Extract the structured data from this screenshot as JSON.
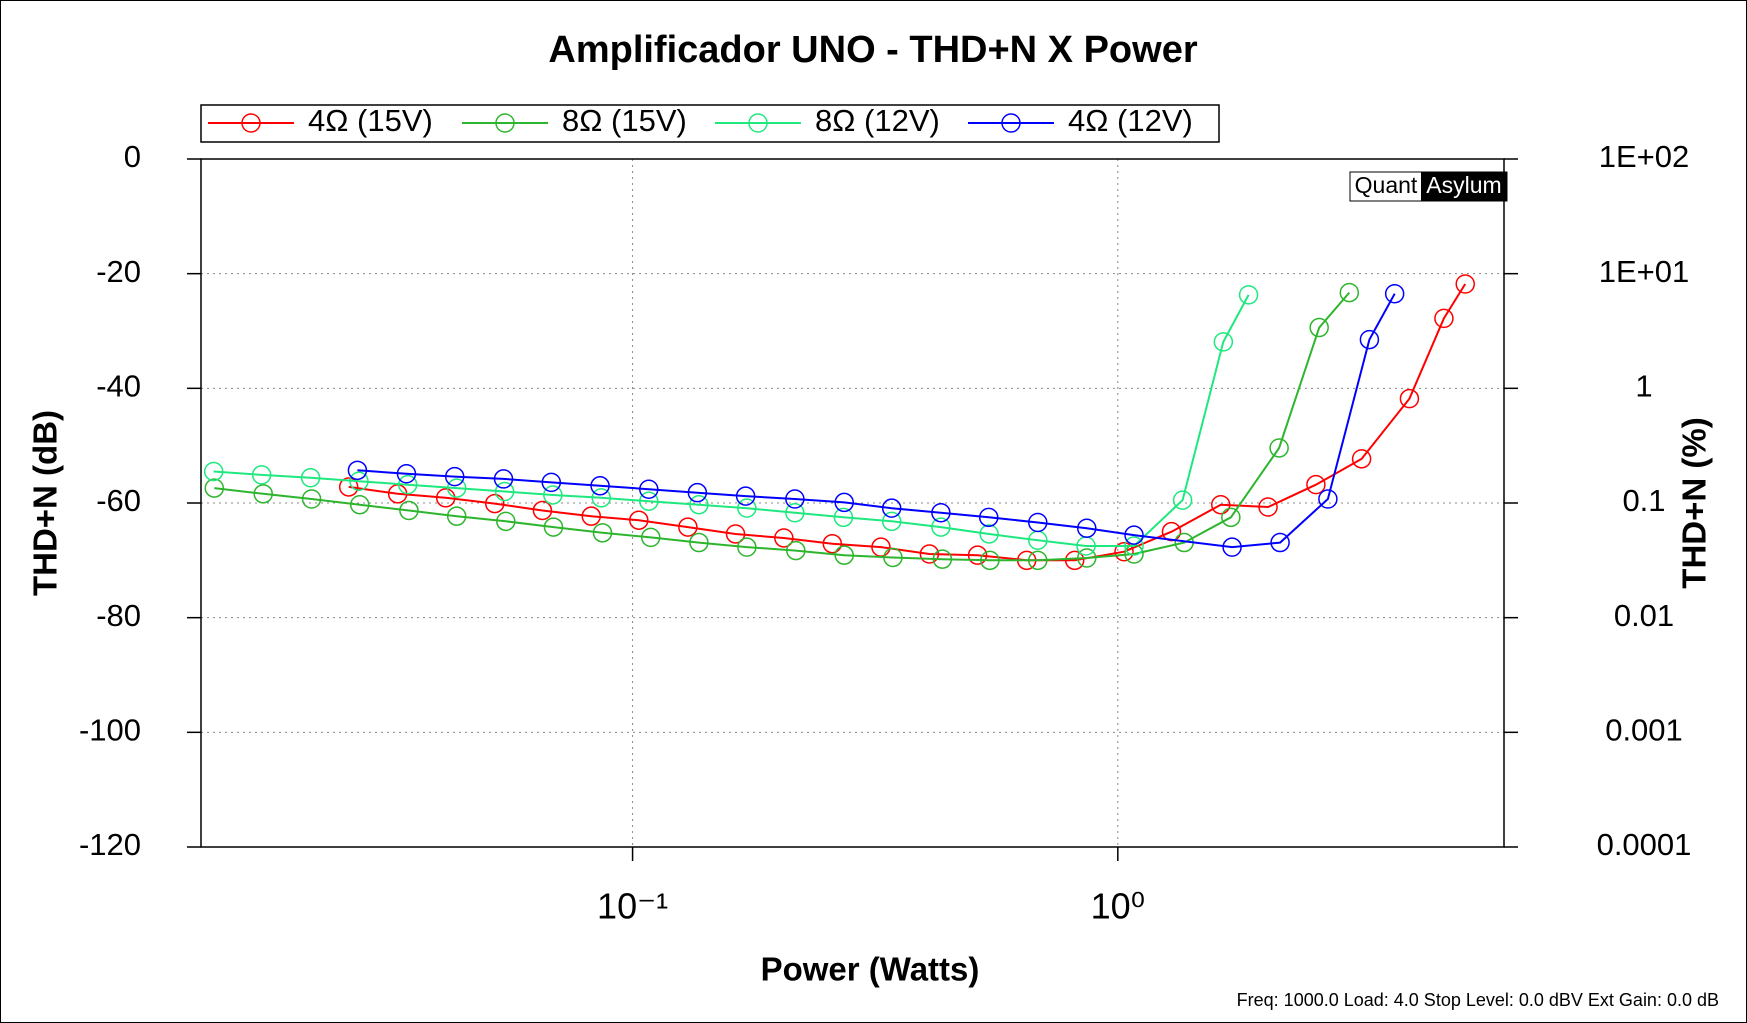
{
  "chart_data": {
    "type": "line",
    "title": "Amplificador UNO - THD+N X Power",
    "x_label": "Power (Watts)",
    "y_label": "THD+N (dB)",
    "y2_label": "THD+N (%)",
    "footer": "Freq: 1000.0 Load: 4.0 Stop Level: 0.0 dBV  Ext Gain: 0.0 dB",
    "watermark": [
      "Quant",
      "Asylum"
    ],
    "x_log": true,
    "y2_log": true,
    "grid": true,
    "legend": "top",
    "xlim": [
      0.0129,
      6.25
    ],
    "xticks": [
      {
        "value": 0.1,
        "label": "10⁻¹"
      },
      {
        "value": 1,
        "label": "10⁰"
      }
    ],
    "ylim": [
      -120,
      0
    ],
    "yticks": [
      0,
      -20,
      -40,
      -60,
      -80,
      -100,
      -120
    ],
    "y2lim": [
      0.0001,
      100
    ],
    "y2ticks": [
      {
        "value": 100,
        "label": "1E+02"
      },
      {
        "value": 10,
        "label": "1E+01"
      },
      1,
      0.1,
      0.01,
      0.001,
      0.0001
    ],
    "series": [
      {
        "name": "4Ω (15V)",
        "color": "#ff0000",
        "x": [
          0.026,
          0.0328,
          0.0412,
          0.052,
          0.0652,
          0.0822,
          0.103,
          0.13,
          0.163,
          0.205,
          0.258,
          0.325,
          0.409,
          0.514,
          0.649,
          0.815,
          1.03,
          1.29,
          1.63,
          2.04,
          2.56,
          3.18,
          3.99,
          4.7,
          5.2
        ],
        "values": [
          -57.2,
          -58.4,
          -59.1,
          -60.1,
          -61.3,
          -62.3,
          -63.0,
          -64.2,
          -65.4,
          -66.1,
          -67.1,
          -67.7,
          -68.9,
          -69.1,
          -70.0,
          -70.0,
          -68.5,
          -65.0,
          -60.3,
          -60.7,
          -56.8,
          -52.3,
          -41.8,
          -27.8,
          -21.8
        ]
      },
      {
        "name": "8Ω (15V)",
        "color": "#2db52d",
        "x": [
          0.01374,
          0.01733,
          0.0218,
          0.0274,
          0.0346,
          0.0434,
          0.0548,
          0.0687,
          0.0867,
          0.109,
          0.137,
          0.172,
          0.217,
          0.273,
          0.344,
          0.435,
          0.545,
          0.684,
          0.863,
          1.08,
          1.37,
          1.71,
          2.15,
          2.6,
          3.0
        ],
        "values": [
          -57.4,
          -58.4,
          -59.3,
          -60.3,
          -61.3,
          -62.3,
          -63.2,
          -64.2,
          -65.2,
          -66.0,
          -66.9,
          -67.7,
          -68.3,
          -69.1,
          -69.5,
          -69.8,
          -70.0,
          -70.0,
          -69.6,
          -68.9,
          -66.9,
          -62.5,
          -50.4,
          -29.4,
          -23.3
        ]
      },
      {
        "name": "8Ω (12V)",
        "color": "#1ee87e",
        "x": [
          0.0137,
          0.0172,
          0.0217,
          0.0273,
          0.0344,
          0.0434,
          0.0545,
          0.0685,
          0.0862,
          0.108,
          0.137,
          0.172,
          0.216,
          0.272,
          0.342,
          0.432,
          0.543,
          0.684,
          0.86,
          1.08,
          1.36,
          1.65,
          1.86
        ],
        "values": [
          -54.5,
          -55.1,
          -55.6,
          -56.2,
          -56.8,
          -57.4,
          -58.0,
          -58.6,
          -59.1,
          -59.7,
          -60.3,
          -60.9,
          -61.7,
          -62.5,
          -63.2,
          -64.2,
          -65.4,
          -66.5,
          -67.5,
          -67.5,
          -59.5,
          -31.9,
          -23.7
        ]
      },
      {
        "name": "4Ω (12V)",
        "color": "#0000ff",
        "x": [
          0.0271,
          0.0342,
          0.043,
          0.0542,
          0.068,
          0.0857,
          0.108,
          0.136,
          0.171,
          0.216,
          0.273,
          0.342,
          0.432,
          0.542,
          0.684,
          0.863,
          1.08,
          1.72,
          2.16,
          2.71,
          3.3,
          3.72
        ],
        "values": [
          -54.3,
          -54.9,
          -55.4,
          -55.8,
          -56.4,
          -57.0,
          -57.6,
          -58.2,
          -58.8,
          -59.3,
          -59.9,
          -60.9,
          -61.7,
          -62.5,
          -63.4,
          -64.4,
          -65.6,
          -67.7,
          -66.9,
          -59.3,
          -31.5,
          -23.5
        ]
      }
    ]
  }
}
